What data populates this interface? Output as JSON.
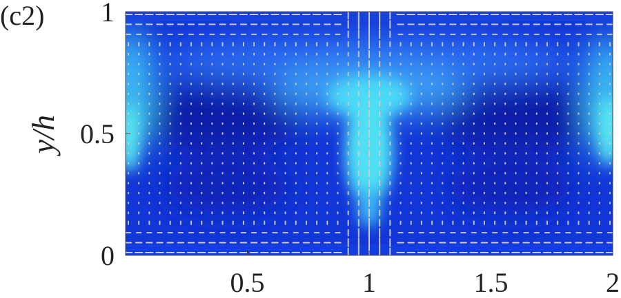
{
  "chart_data": {
    "type": "contour",
    "panel_label": "(c2)",
    "ylabel": "y/h",
    "xlim": [
      0,
      2
    ],
    "ylim": [
      0,
      1
    ],
    "xticks": [
      0.5,
      1,
      1.5,
      2
    ],
    "yticks": [
      0,
      0.5,
      1
    ]
  }
}
